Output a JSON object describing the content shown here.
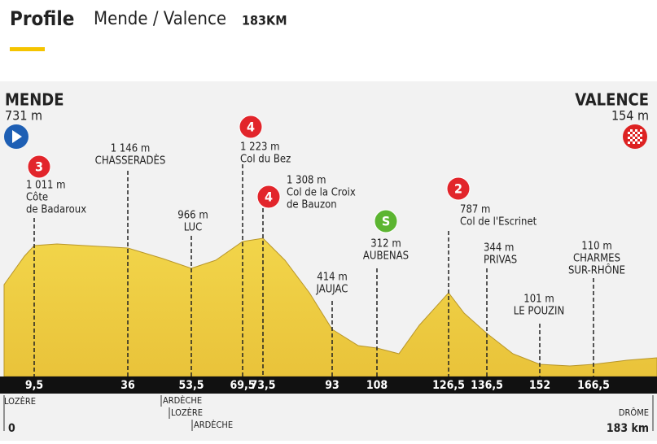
{
  "header": {
    "title": "Profile",
    "route": "Mende / Valence",
    "distance": "183KM"
  },
  "start": {
    "name": "MENDE",
    "altitude": "731 m"
  },
  "finish": {
    "name": "VALENCE",
    "altitude": "154 m"
  },
  "waypoints": [
    {
      "km": "9,5",
      "altitude": "1 011 m",
      "name": [
        "Côte",
        "de Badaroux"
      ],
      "badge": "3",
      "badge_color": "#e2252b"
    },
    {
      "km": "36",
      "altitude": "1 146 m",
      "name": [
        "CHASSERADÈS"
      ]
    },
    {
      "km": "53,5",
      "altitude": "966 m",
      "name": [
        "LUC"
      ]
    },
    {
      "km": "69,5",
      "altitude": "1 223 m",
      "name": [
        "Col du Bez"
      ],
      "badge": "4",
      "badge_color": "#e2252b"
    },
    {
      "km": "73,5",
      "altitude": "1 308 m",
      "name": [
        "Col de la Croix",
        "de Bauzon"
      ],
      "badge": "4",
      "badge_color": "#e2252b"
    },
    {
      "km": "93",
      "altitude": "414 m",
      "name": [
        "JAUJAC"
      ]
    },
    {
      "km": "108",
      "altitude": "312 m",
      "name": [
        "AUBENAS"
      ],
      "badge": "S",
      "badge_color": "#5cb531"
    },
    {
      "km": "126,5",
      "altitude": "787 m",
      "name": [
        "Col de l'Escrinet"
      ],
      "badge": "2",
      "badge_color": "#e2252b"
    },
    {
      "km": "136,5",
      "altitude": "344 m",
      "name": [
        "PRIVAS"
      ]
    },
    {
      "km": "152",
      "altitude": "101 m",
      "name": [
        "LE POUZIN"
      ]
    },
    {
      "km": "166,5",
      "altitude": "110 m",
      "name": [
        "CHARMES",
        "SUR-RHÔNE"
      ]
    }
  ],
  "regions": {
    "start": "LOZÈRE",
    "middle": [
      "ARDÈCHE",
      "LOZÈRE",
      "ARDÈCHE"
    ],
    "end": "DRÔME"
  },
  "axis": {
    "start": "0",
    "end": "183 km"
  }
}
